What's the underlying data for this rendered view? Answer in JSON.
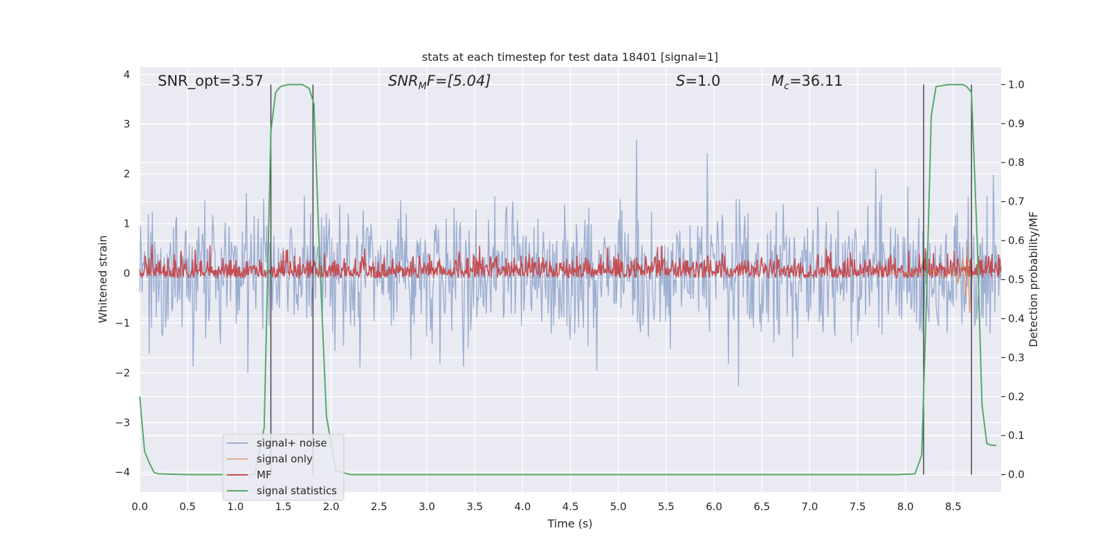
{
  "chart_data": {
    "type": "line",
    "title": "stats at each timestep for test data 18401 [signal=1]",
    "xlabel": "Time (s)",
    "ylabel": "Whitened strain",
    "y2label": "Detection probability/MF",
    "xlim": [
      0,
      9
    ],
    "ylim": [
      -4.4,
      4.15
    ],
    "y2lim": [
      -0.045,
      1.045
    ],
    "xticks": [
      "0.0",
      "0.5",
      "1.0",
      "1.5",
      "2.0",
      "2.5",
      "3.0",
      "3.5",
      "4.0",
      "4.5",
      "5.0",
      "5.5",
      "6.0",
      "6.5",
      "7.0",
      "7.5",
      "8.0",
      "8.5"
    ],
    "yticks": [
      "4",
      "3",
      "2",
      "1",
      "0",
      "−1",
      "−2",
      "−3",
      "−4"
    ],
    "y2ticks": [
      "1.0",
      "0.9",
      "0.8",
      "0.7",
      "0.6",
      "0.5",
      "0.4",
      "0.3",
      "0.2",
      "0.1",
      "0.0"
    ],
    "grid": true,
    "legend": {
      "placement": "lower-left",
      "entries": [
        "signal+ noise",
        "signal only",
        "MF",
        "signal statistics"
      ]
    },
    "annotations": {
      "snr_opt": "SNR_opt=3.57",
      "snr_mf": "SNR",
      "snr_mf_sub": "M",
      "snr_mf_rest": "F=[5.04]",
      "s_label": "S",
      "s_value": "=1.0",
      "mc_label": "M",
      "mc_sub": "c",
      "mc_value": "=36.11"
    },
    "vertical_markers": [
      1.37,
      1.81,
      8.19,
      8.69
    ],
    "series": [
      {
        "name": "signal+ noise",
        "color": "#4c72b0",
        "description_ranges": {
          "typical_min": -2.0,
          "typical_max": 2.2,
          "extreme_min": -4.0,
          "extreme_max": 3.75
        }
      },
      {
        "name": "signal only",
        "color": "#dd8452",
        "x": [
          7.8,
          8.0,
          8.2,
          8.3,
          8.4,
          8.5,
          8.55,
          8.6,
          8.63,
          8.65,
          8.67,
          8.7
        ],
        "y": [
          0.0,
          0.02,
          -0.05,
          0.08,
          -0.1,
          0.15,
          -0.2,
          0.3,
          -0.45,
          0.55,
          -0.8,
          0.0
        ]
      },
      {
        "name": "MF",
        "color": "#c44e52",
        "description_ranges": {
          "y2_baseline_min": 0.505,
          "y2_baseline_max": 0.6
        }
      },
      {
        "name": "signal statistics",
        "color": "#55a868",
        "x": [
          0.0,
          0.05,
          0.1,
          0.15,
          0.2,
          0.5,
          1.0,
          1.2,
          1.3,
          1.37,
          1.42,
          1.47,
          1.55,
          1.7,
          1.77,
          1.82,
          1.88,
          1.95,
          2.05,
          2.2,
          3.0,
          4.0,
          5.0,
          6.0,
          7.0,
          7.9,
          8.1,
          8.17,
          8.22,
          8.27,
          8.32,
          8.45,
          8.6,
          8.64,
          8.69,
          8.75,
          8.8,
          8.85,
          8.9,
          8.95
        ],
        "y": [
          0.2,
          0.06,
          0.03,
          0.005,
          0.002,
          0.0,
          0.0,
          0.0,
          0.12,
          0.88,
          0.98,
          0.995,
          1.0,
          1.0,
          0.99,
          0.95,
          0.55,
          0.15,
          0.01,
          0.0,
          0.0,
          0.0,
          0.0,
          0.0,
          0.0,
          0.0,
          0.002,
          0.05,
          0.45,
          0.92,
          0.995,
          1.0,
          1.0,
          0.995,
          0.98,
          0.6,
          0.18,
          0.08,
          0.075,
          0.075
        ]
      }
    ]
  }
}
